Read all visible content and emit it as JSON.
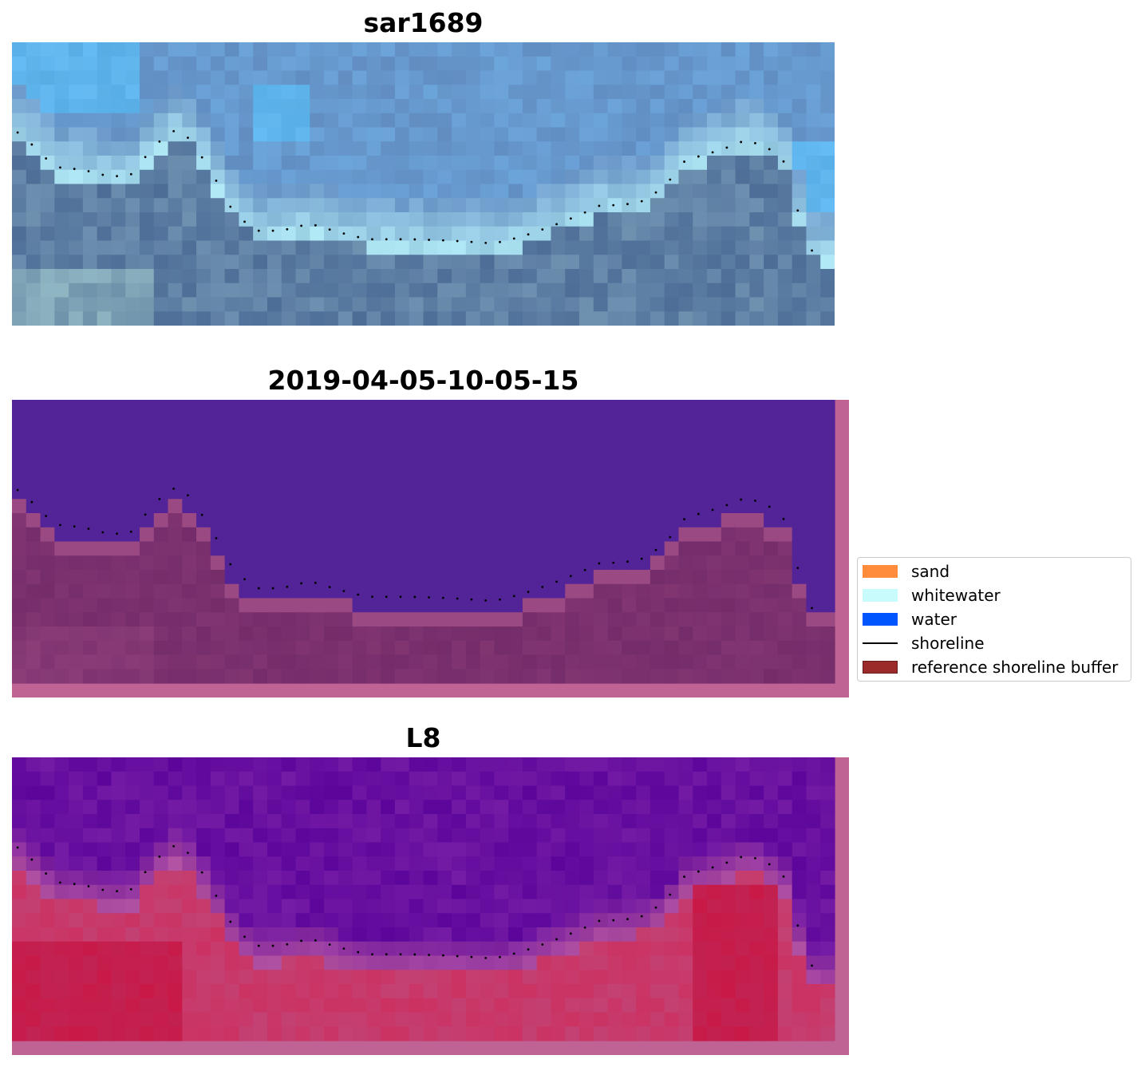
{
  "panels": [
    {
      "title": "sar1689",
      "kind": "rgb"
    },
    {
      "title": "2019-04-05-10-05-15",
      "kind": "classified"
    },
    {
      "title": "L8",
      "kind": "index"
    }
  ],
  "legend": {
    "items": [
      {
        "label": "sand",
        "type": "patch",
        "color": "#ff8c3a"
      },
      {
        "label": "whitewater",
        "type": "patch",
        "color": "#c8fcfc"
      },
      {
        "label": "water",
        "type": "patch",
        "color": "#0055ff"
      },
      {
        "label": "shoreline",
        "type": "line",
        "color": "#000000"
      },
      {
        "label": "reference shoreline buffer",
        "type": "patch",
        "color": "#9b2a2a"
      }
    ]
  },
  "colors": {
    "buffer_border": "#bf6394",
    "classified_water": "#522497",
    "classified_land": "#742c6a"
  }
}
